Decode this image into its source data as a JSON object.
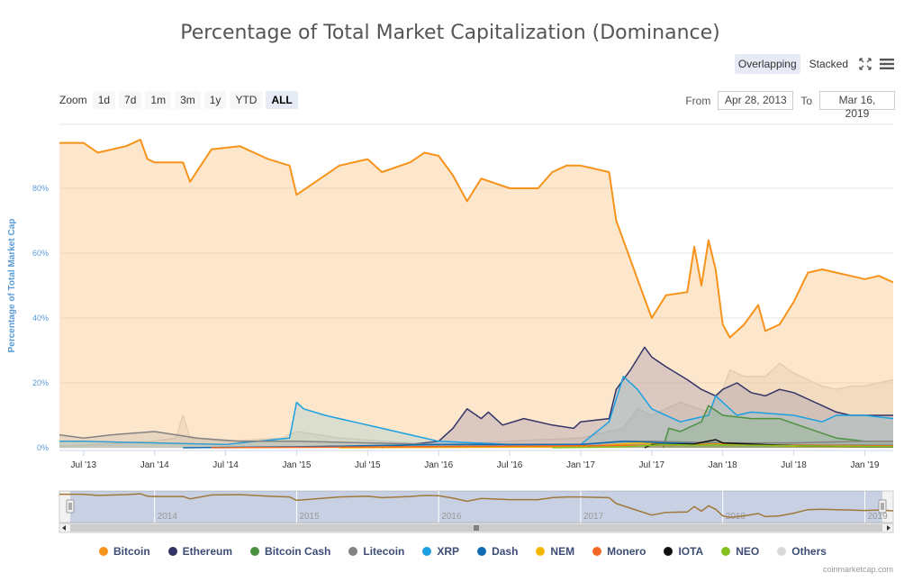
{
  "page": {
    "title": "Percentage of Total Market Capitalization (Dominance)",
    "overlapping_label": "Overlapping",
    "stacked_label": "Stacked",
    "zoom_label": "Zoom",
    "zoom_buttons": [
      "1d",
      "7d",
      "1m",
      "3m",
      "1y",
      "YTD",
      "ALL"
    ],
    "selected_zoom": "ALL",
    "from_label": "From",
    "from_value": "Apr 28, 2013",
    "to_label": "To",
    "to_value": "Mar 16, 2019",
    "credit": "coinmarketcap.com"
  },
  "chart_data": {
    "type": "area",
    "title": "Percentage of Total Market Capitalization (Dominance)",
    "ylabel": "Percentage of Total Market Cap",
    "xlim": [
      2013.33,
      2019.2
    ],
    "ylim": [
      0,
      100
    ],
    "y_ticks": [
      0,
      20,
      40,
      60,
      80
    ],
    "y_tick_labels": [
      "0%",
      "20%",
      "40%",
      "60%",
      "80%"
    ],
    "x_ticks": [
      {
        "t": 2013.5,
        "label": "Jul '13"
      },
      {
        "t": 2014.0,
        "label": "Jan '14"
      },
      {
        "t": 2014.5,
        "label": "Jul '14"
      },
      {
        "t": 2015.0,
        "label": "Jan '15"
      },
      {
        "t": 2015.5,
        "label": "Jul '15"
      },
      {
        "t": 2016.0,
        "label": "Jan '16"
      },
      {
        "t": 2016.5,
        "label": "Jul '16"
      },
      {
        "t": 2017.0,
        "label": "Jan '17"
      },
      {
        "t": 2017.5,
        "label": "Jul '17"
      },
      {
        "t": 2018.0,
        "label": "Jan '18"
      },
      {
        "t": 2018.5,
        "label": "Jul '18"
      },
      {
        "t": 2019.0,
        "label": "Jan '19"
      }
    ],
    "navigator_labels": [
      {
        "t": 2014.0,
        "label": "2014"
      },
      {
        "t": 2015.0,
        "label": "2015"
      },
      {
        "t": 2016.0,
        "label": "2016"
      },
      {
        "t": 2017.0,
        "label": "2017"
      },
      {
        "t": 2018.0,
        "label": "2018"
      },
      {
        "t": 2019.0,
        "label": "2019"
      }
    ],
    "series": [
      {
        "name": "Others",
        "color": "#d9d9d9",
        "fill": "rgba(210,210,210,0.35)",
        "points": [
          [
            2013.33,
            0.5
          ],
          [
            2013.6,
            1
          ],
          [
            2014.0,
            2
          ],
          [
            2014.15,
            3
          ],
          [
            2014.2,
            10
          ],
          [
            2014.25,
            3
          ],
          [
            2014.5,
            2
          ],
          [
            2014.9,
            3
          ],
          [
            2015.0,
            5
          ],
          [
            2015.3,
            3
          ],
          [
            2015.6,
            2
          ],
          [
            2016.0,
            1
          ],
          [
            2016.5,
            2
          ],
          [
            2017.0,
            3
          ],
          [
            2017.3,
            6
          ],
          [
            2017.4,
            12
          ],
          [
            2017.5,
            10
          ],
          [
            2017.7,
            14
          ],
          [
            2017.9,
            11
          ],
          [
            2018.0,
            18
          ],
          [
            2018.05,
            24
          ],
          [
            2018.15,
            22
          ],
          [
            2018.3,
            22
          ],
          [
            2018.4,
            26
          ],
          [
            2018.5,
            23
          ],
          [
            2018.6,
            21
          ],
          [
            2018.7,
            19
          ],
          [
            2018.8,
            18
          ],
          [
            2018.9,
            19
          ],
          [
            2019.0,
            19
          ],
          [
            2019.1,
            20
          ],
          [
            2019.2,
            21
          ]
        ]
      },
      {
        "name": "Bitcoin",
        "color": "#f7931a",
        "fill": "rgba(250,185,110,0.35)",
        "points": [
          [
            2013.33,
            94
          ],
          [
            2013.5,
            94
          ],
          [
            2013.6,
            91
          ],
          [
            2013.8,
            93
          ],
          [
            2013.9,
            95
          ],
          [
            2013.95,
            89
          ],
          [
            2014.0,
            88
          ],
          [
            2014.2,
            88
          ],
          [
            2014.25,
            82
          ],
          [
            2014.4,
            92
          ],
          [
            2014.6,
            93
          ],
          [
            2014.8,
            89
          ],
          [
            2014.95,
            87
          ],
          [
            2015.0,
            78
          ],
          [
            2015.1,
            81
          ],
          [
            2015.3,
            87
          ],
          [
            2015.5,
            89
          ],
          [
            2015.6,
            85
          ],
          [
            2015.8,
            88
          ],
          [
            2015.9,
            91
          ],
          [
            2016.0,
            90
          ],
          [
            2016.1,
            84
          ],
          [
            2016.2,
            76
          ],
          [
            2016.3,
            83
          ],
          [
            2016.5,
            80
          ],
          [
            2016.7,
            80
          ],
          [
            2016.8,
            85
          ],
          [
            2016.9,
            87
          ],
          [
            2017.0,
            87
          ],
          [
            2017.2,
            85
          ],
          [
            2017.25,
            70
          ],
          [
            2017.4,
            52
          ],
          [
            2017.5,
            40
          ],
          [
            2017.6,
            47
          ],
          [
            2017.75,
            48
          ],
          [
            2017.8,
            62
          ],
          [
            2017.85,
            50
          ],
          [
            2017.9,
            64
          ],
          [
            2017.95,
            55
          ],
          [
            2018.0,
            38
          ],
          [
            2018.05,
            34
          ],
          [
            2018.15,
            38
          ],
          [
            2018.25,
            44
          ],
          [
            2018.3,
            36
          ],
          [
            2018.4,
            38
          ],
          [
            2018.5,
            45
          ],
          [
            2018.6,
            54
          ],
          [
            2018.7,
            55
          ],
          [
            2018.8,
            54
          ],
          [
            2018.9,
            53
          ],
          [
            2019.0,
            52
          ],
          [
            2019.1,
            53
          ],
          [
            2019.2,
            51
          ]
        ]
      },
      {
        "name": "Ethereum",
        "color": "#333366",
        "fill": "rgba(120,110,160,0.25)",
        "points": [
          [
            2015.6,
            0
          ],
          [
            2016.0,
            2
          ],
          [
            2016.1,
            6
          ],
          [
            2016.2,
            12
          ],
          [
            2016.3,
            9
          ],
          [
            2016.35,
            11
          ],
          [
            2016.45,
            7
          ],
          [
            2016.6,
            9
          ],
          [
            2016.8,
            7
          ],
          [
            2016.95,
            6
          ],
          [
            2017.0,
            8
          ],
          [
            2017.2,
            9
          ],
          [
            2017.25,
            18
          ],
          [
            2017.35,
            24
          ],
          [
            2017.45,
            31
          ],
          [
            2017.5,
            28
          ],
          [
            2017.6,
            25
          ],
          [
            2017.75,
            21
          ],
          [
            2017.85,
            18
          ],
          [
            2017.95,
            16
          ],
          [
            2018.0,
            18
          ],
          [
            2018.1,
            20
          ],
          [
            2018.2,
            17
          ],
          [
            2018.3,
            16
          ],
          [
            2018.4,
            18
          ],
          [
            2018.5,
            17
          ],
          [
            2018.6,
            15
          ],
          [
            2018.7,
            13
          ],
          [
            2018.8,
            11
          ],
          [
            2018.9,
            10
          ],
          [
            2019.0,
            10
          ],
          [
            2019.2,
            10
          ]
        ]
      },
      {
        "name": "XRP",
        "color": "#1ba0e1",
        "fill": "rgba(120,190,210,0.25)",
        "points": [
          [
            2013.33,
            2
          ],
          [
            2013.5,
            2
          ],
          [
            2014.0,
            1.5
          ],
          [
            2014.5,
            1
          ],
          [
            2014.95,
            3
          ],
          [
            2015.0,
            14
          ],
          [
            2015.05,
            12
          ],
          [
            2015.2,
            10
          ],
          [
            2015.4,
            8
          ],
          [
            2015.6,
            6
          ],
          [
            2015.8,
            4
          ],
          [
            2016.0,
            2
          ],
          [
            2016.5,
            1
          ],
          [
            2017.0,
            1
          ],
          [
            2017.2,
            8
          ],
          [
            2017.3,
            22
          ],
          [
            2017.4,
            18
          ],
          [
            2017.5,
            12
          ],
          [
            2017.7,
            8
          ],
          [
            2017.9,
            10
          ],
          [
            2017.95,
            16
          ],
          [
            2018.0,
            14
          ],
          [
            2018.1,
            10
          ],
          [
            2018.2,
            11
          ],
          [
            2018.5,
            10
          ],
          [
            2018.7,
            8
          ],
          [
            2018.8,
            10
          ],
          [
            2019.0,
            10
          ],
          [
            2019.2,
            9
          ]
        ]
      },
      {
        "name": "Bitcoin Cash",
        "color": "#4c9140",
        "fill": "rgba(120,170,110,0.25)",
        "points": [
          [
            2017.58,
            0
          ],
          [
            2017.62,
            6
          ],
          [
            2017.7,
            5
          ],
          [
            2017.85,
            8
          ],
          [
            2017.9,
            13
          ],
          [
            2018.0,
            10
          ],
          [
            2018.2,
            9
          ],
          [
            2018.4,
            9
          ],
          [
            2018.6,
            6
          ],
          [
            2018.8,
            3
          ],
          [
            2019.0,
            2
          ],
          [
            2019.2,
            2
          ]
        ]
      },
      {
        "name": "Litecoin",
        "color": "#838383",
        "fill": "rgba(150,150,150,0.2)",
        "points": [
          [
            2013.33,
            4
          ],
          [
            2013.5,
            3
          ],
          [
            2013.7,
            4
          ],
          [
            2014.0,
            5
          ],
          [
            2014.3,
            3
          ],
          [
            2014.6,
            2
          ],
          [
            2015.0,
            2
          ],
          [
            2016.0,
            1
          ],
          [
            2017.0,
            1
          ],
          [
            2017.3,
            2
          ],
          [
            2017.5,
            2
          ],
          [
            2018.0,
            1.5
          ],
          [
            2018.5,
            1.5
          ],
          [
            2019.0,
            2
          ],
          [
            2019.2,
            2
          ]
        ]
      },
      {
        "name": "Dash",
        "color": "#0f6cb3",
        "fill": "rgba(15,108,179,0.1)",
        "points": [
          [
            2014.2,
            0
          ],
          [
            2015.0,
            0.3
          ],
          [
            2016.0,
            1
          ],
          [
            2016.5,
            1
          ],
          [
            2017.0,
            1
          ],
          [
            2017.3,
            2
          ],
          [
            2017.6,
            1.5
          ],
          [
            2018.0,
            1
          ],
          [
            2018.5,
            0.8
          ],
          [
            2019.2,
            0.7
          ]
        ]
      },
      {
        "name": "NEM",
        "color": "#f5b700",
        "fill": "rgba(245,183,0,0.1)",
        "points": [
          [
            2015.3,
            0
          ],
          [
            2016.5,
            0.2
          ],
          [
            2017.0,
            0.3
          ],
          [
            2017.4,
            1.5
          ],
          [
            2017.6,
            1
          ],
          [
            2018.0,
            1.2
          ],
          [
            2018.5,
            0.5
          ],
          [
            2019.2,
            0.3
          ]
        ]
      },
      {
        "name": "Monero",
        "color": "#f26822",
        "fill": "rgba(242,104,34,0.1)",
        "points": [
          [
            2014.4,
            0
          ],
          [
            2016.5,
            0.5
          ],
          [
            2017.0,
            0.6
          ],
          [
            2017.5,
            0.8
          ],
          [
            2018.0,
            1
          ],
          [
            2018.5,
            0.8
          ],
          [
            2019.2,
            0.6
          ]
        ]
      },
      {
        "name": "IOTA",
        "color": "#111111",
        "fill": "rgba(0,0,0,0.05)",
        "points": [
          [
            2017.45,
            0
          ],
          [
            2017.5,
            1
          ],
          [
            2017.8,
            1.2
          ],
          [
            2017.95,
            2.5
          ],
          [
            2018.0,
            1.5
          ],
          [
            2018.5,
            0.6
          ],
          [
            2019.2,
            0.3
          ]
        ]
      },
      {
        "name": "NEO",
        "color": "#84c11f",
        "fill": "rgba(132,193,31,0.1)",
        "points": [
          [
            2016.8,
            0
          ],
          [
            2017.3,
            0.3
          ],
          [
            2017.6,
            1
          ],
          [
            2017.8,
            0.8
          ],
          [
            2018.0,
            0.9
          ],
          [
            2018.5,
            0.6
          ],
          [
            2019.2,
            0.4
          ]
        ]
      }
    ],
    "legend": [
      "Bitcoin",
      "Ethereum",
      "Bitcoin Cash",
      "Litecoin",
      "XRP",
      "Dash",
      "NEM",
      "Monero",
      "IOTA",
      "NEO",
      "Others"
    ],
    "legend_colors": {
      "Bitcoin": "#f7931a",
      "Ethereum": "#333366",
      "Bitcoin Cash": "#4c9140",
      "Litecoin": "#838383",
      "XRP": "#1ba0e1",
      "Dash": "#0f6cb3",
      "NEM": "#f5b700",
      "Monero": "#f26822",
      "IOTA": "#111111",
      "NEO": "#84c11f",
      "Others": "#d9d9d9"
    }
  }
}
